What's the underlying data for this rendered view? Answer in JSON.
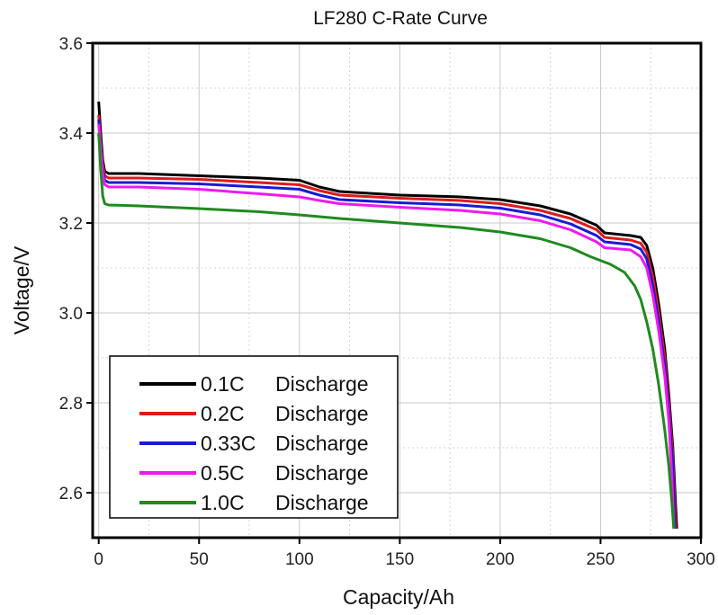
{
  "chart_data": {
    "type": "line",
    "title": "LF280 C-Rate Curve",
    "xlabel": "Capacity/Ah",
    "ylabel": "Voltage/V",
    "xlim": [
      -3,
      300
    ],
    "ylim": [
      2.5,
      3.6
    ],
    "xticks": [
      "0",
      "50",
      "100",
      "150",
      "200",
      "250",
      "300"
    ],
    "yticks": [
      "2.6",
      "2.8",
      "3.0",
      "3.2",
      "3.4",
      "3.6"
    ],
    "grid": true,
    "legend_position": "bottom-left",
    "series": [
      {
        "name": "0.1C",
        "legend_label": "Discharge",
        "color": "#000000",
        "points": [
          [
            0,
            3.47
          ],
          [
            1,
            3.4
          ],
          [
            2,
            3.34
          ],
          [
            3,
            3.315
          ],
          [
            5,
            3.31
          ],
          [
            20,
            3.31
          ],
          [
            50,
            3.305
          ],
          [
            80,
            3.3
          ],
          [
            100,
            3.295
          ],
          [
            110,
            3.28
          ],
          [
            120,
            3.27
          ],
          [
            150,
            3.262
          ],
          [
            180,
            3.258
          ],
          [
            200,
            3.252
          ],
          [
            220,
            3.238
          ],
          [
            235,
            3.22
          ],
          [
            248,
            3.195
          ],
          [
            252,
            3.178
          ],
          [
            265,
            3.172
          ],
          [
            270,
            3.168
          ],
          [
            273,
            3.15
          ],
          [
            276,
            3.1
          ],
          [
            279,
            3.02
          ],
          [
            282,
            2.92
          ],
          [
            284,
            2.82
          ],
          [
            286,
            2.7
          ],
          [
            288,
            2.52
          ]
        ]
      },
      {
        "name": "0.2C",
        "legend_label": "Discharge",
        "color": "#e01a1a",
        "points": [
          [
            0,
            3.44
          ],
          [
            1,
            3.38
          ],
          [
            2,
            3.33
          ],
          [
            3,
            3.305
          ],
          [
            5,
            3.3
          ],
          [
            20,
            3.3
          ],
          [
            50,
            3.297
          ],
          [
            80,
            3.29
          ],
          [
            100,
            3.285
          ],
          [
            110,
            3.272
          ],
          [
            120,
            3.262
          ],
          [
            150,
            3.255
          ],
          [
            180,
            3.25
          ],
          [
            200,
            3.243
          ],
          [
            220,
            3.228
          ],
          [
            235,
            3.21
          ],
          [
            248,
            3.185
          ],
          [
            252,
            3.168
          ],
          [
            265,
            3.162
          ],
          [
            270,
            3.155
          ],
          [
            273,
            3.135
          ],
          [
            276,
            3.08
          ],
          [
            279,
            3.0
          ],
          [
            282,
            2.9
          ],
          [
            284,
            2.8
          ],
          [
            286,
            2.68
          ],
          [
            287.5,
            2.52
          ]
        ]
      },
      {
        "name": "0.33C",
        "legend_label": "Discharge",
        "color": "#1a1ad6",
        "points": [
          [
            0,
            3.43
          ],
          [
            1,
            3.37
          ],
          [
            2,
            3.32
          ],
          [
            3,
            3.295
          ],
          [
            5,
            3.29
          ],
          [
            20,
            3.29
          ],
          [
            50,
            3.287
          ],
          [
            80,
            3.28
          ],
          [
            100,
            3.275
          ],
          [
            110,
            3.262
          ],
          [
            120,
            3.252
          ],
          [
            150,
            3.245
          ],
          [
            180,
            3.24
          ],
          [
            200,
            3.233
          ],
          [
            220,
            3.218
          ],
          [
            235,
            3.198
          ],
          [
            248,
            3.172
          ],
          [
            252,
            3.158
          ],
          [
            265,
            3.152
          ],
          [
            270,
            3.142
          ],
          [
            273,
            3.12
          ],
          [
            276,
            3.06
          ],
          [
            279,
            2.98
          ],
          [
            282,
            2.88
          ],
          [
            284,
            2.78
          ],
          [
            286,
            2.66
          ],
          [
            287,
            2.52
          ]
        ]
      },
      {
        "name": "0.5C",
        "legend_label": "Discharge",
        "color": "#ee1aee",
        "points": [
          [
            0,
            3.42
          ],
          [
            1,
            3.36
          ],
          [
            2,
            3.31
          ],
          [
            3,
            3.285
          ],
          [
            5,
            3.28
          ],
          [
            20,
            3.28
          ],
          [
            50,
            3.275
          ],
          [
            80,
            3.265
          ],
          [
            100,
            3.258
          ],
          [
            110,
            3.25
          ],
          [
            120,
            3.243
          ],
          [
            150,
            3.235
          ],
          [
            180,
            3.228
          ],
          [
            200,
            3.22
          ],
          [
            220,
            3.205
          ],
          [
            235,
            3.185
          ],
          [
            248,
            3.158
          ],
          [
            252,
            3.145
          ],
          [
            265,
            3.14
          ],
          [
            270,
            3.125
          ],
          [
            273,
            3.1
          ],
          [
            276,
            3.04
          ],
          [
            279,
            2.96
          ],
          [
            282,
            2.86
          ],
          [
            284,
            2.76
          ],
          [
            285.5,
            2.64
          ],
          [
            286.5,
            2.52
          ]
        ]
      },
      {
        "name": "1.0C",
        "legend_label": "Discharge",
        "color": "#1f8a1f",
        "points": [
          [
            0,
            3.4
          ],
          [
            1,
            3.32
          ],
          [
            2,
            3.26
          ],
          [
            3,
            3.243
          ],
          [
            5,
            3.24
          ],
          [
            20,
            3.238
          ],
          [
            50,
            3.232
          ],
          [
            80,
            3.225
          ],
          [
            100,
            3.218
          ],
          [
            120,
            3.21
          ],
          [
            150,
            3.2
          ],
          [
            180,
            3.19
          ],
          [
            200,
            3.18
          ],
          [
            220,
            3.165
          ],
          [
            235,
            3.145
          ],
          [
            245,
            3.125
          ],
          [
            255,
            3.108
          ],
          [
            262,
            3.09
          ],
          [
            267,
            3.06
          ],
          [
            270,
            3.03
          ],
          [
            273,
            2.98
          ],
          [
            276,
            2.92
          ],
          [
            279,
            2.84
          ],
          [
            282,
            2.74
          ],
          [
            284,
            2.66
          ],
          [
            285.5,
            2.58
          ],
          [
            286.5,
            2.52
          ]
        ]
      }
    ]
  }
}
